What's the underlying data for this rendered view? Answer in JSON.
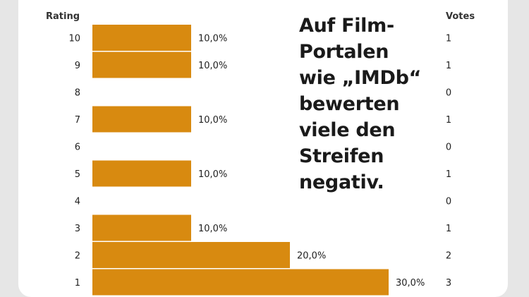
{
  "caption": "Auf Film-Portalen wie „IMDb“ bewerten viele den Streifen negativ.",
  "colors": {
    "bar": "#d88a10",
    "background": "#ffffff",
    "frame": "#e6e6e6"
  },
  "chart_data": {
    "type": "bar",
    "orientation": "horizontal",
    "row_header": "Rating",
    "votes_header": "Votes",
    "categories": [
      "10",
      "9",
      "8",
      "7",
      "6",
      "5",
      "4",
      "3",
      "2",
      "1"
    ],
    "values": [
      10.0,
      10.0,
      0,
      10.0,
      0,
      10.0,
      0,
      10.0,
      20.0,
      30.0
    ],
    "percent_labels": [
      "10,0%",
      "10,0%",
      "",
      "10,0%",
      "",
      "10,0%",
      "",
      "10,0%",
      "20,0%",
      "30,0%"
    ],
    "votes": [
      "1",
      "1",
      "0",
      "1",
      "0",
      "1",
      "0",
      "1",
      "2",
      "3"
    ],
    "xlim": [
      0,
      30
    ],
    "grid": false,
    "legend": "none"
  }
}
